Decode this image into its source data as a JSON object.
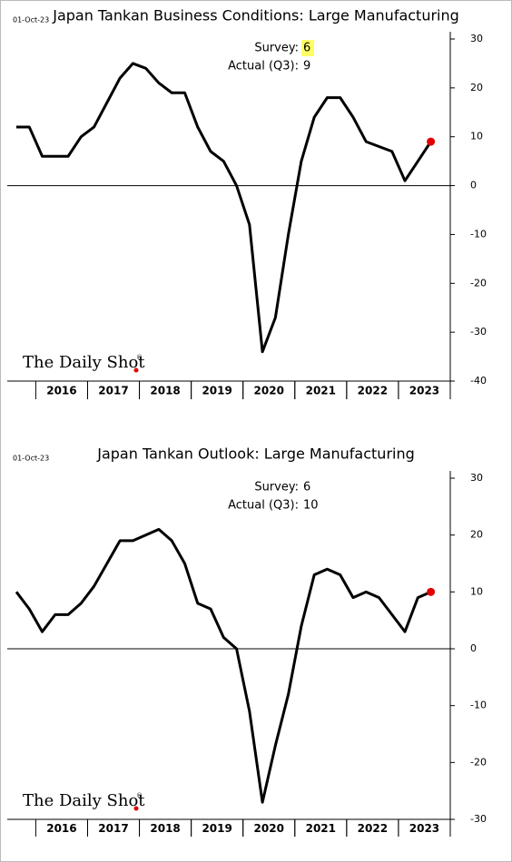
{
  "watermark": "The Daily Shot",
  "watermark_mark": "®",
  "chart_data": [
    {
      "type": "line",
      "title": "Japan Tankan Business Conditions: Large Manufacturing",
      "date": "01-Oct-23",
      "annotations": [
        {
          "label": "Survey:",
          "value": "6",
          "highlight": "#ffff66"
        },
        {
          "label": "Actual (Q3):",
          "value": "9"
        }
      ],
      "x": [
        2015.625,
        2015.875,
        2016.125,
        2016.375,
        2016.625,
        2016.875,
        2017.125,
        2017.375,
        2017.625,
        2017.875,
        2018.125,
        2018.375,
        2018.625,
        2018.875,
        2019.125,
        2019.375,
        2019.625,
        2019.875,
        2020.125,
        2020.375,
        2020.625,
        2020.875,
        2021.125,
        2021.375,
        2021.625,
        2021.875,
        2022.125,
        2022.375,
        2022.625,
        2022.875,
        2023.125,
        2023.375,
        2023.625
      ],
      "series": [
        {
          "color": "#000000",
          "last_point_color": "#e00000",
          "values": [
            12,
            12,
            6,
            6,
            6,
            10,
            12,
            17,
            22,
            25,
            24,
            21,
            19,
            19,
            12,
            7,
            5,
            0,
            -8,
            -34,
            -27,
            -10,
            5,
            14,
            18,
            18,
            14,
            9,
            8,
            7,
            1,
            5,
            9
          ]
        }
      ],
      "xlim": [
        2015.45,
        2024.0
      ],
      "xticks": [
        {
          "value": 2016.5,
          "label": "2016"
        },
        {
          "value": 2017.5,
          "label": "2017"
        },
        {
          "value": 2018.5,
          "label": "2018"
        },
        {
          "value": 2019.5,
          "label": "2019"
        },
        {
          "value": 2020.5,
          "label": "2020"
        },
        {
          "value": 2021.5,
          "label": "2021"
        },
        {
          "value": 2022.5,
          "label": "2022"
        },
        {
          "value": 2023.5,
          "label": "2023"
        }
      ],
      "ylim": [
        -40,
        30
      ],
      "yticks": [
        -40,
        -30,
        -20,
        -10,
        0,
        10,
        20,
        30
      ]
    },
    {
      "type": "line",
      "title": "Japan Tankan Outlook: Large Manufacturing",
      "date": "01-Oct-23",
      "annotations": [
        {
          "label": "Survey:",
          "value": "6"
        },
        {
          "label": "Actual (Q3):",
          "value": "10"
        }
      ],
      "x": [
        2015.625,
        2015.875,
        2016.125,
        2016.375,
        2016.625,
        2016.875,
        2017.125,
        2017.375,
        2017.625,
        2017.875,
        2018.125,
        2018.375,
        2018.625,
        2018.875,
        2019.125,
        2019.375,
        2019.625,
        2019.875,
        2020.125,
        2020.375,
        2020.625,
        2020.875,
        2021.125,
        2021.375,
        2021.625,
        2021.875,
        2022.125,
        2022.375,
        2022.625,
        2022.875,
        2023.125,
        2023.375,
        2023.625
      ],
      "series": [
        {
          "color": "#000000",
          "last_point_color": "#e00000",
          "values": [
            10,
            7,
            3,
            6,
            6,
            8,
            11,
            15,
            19,
            19,
            20,
            21,
            19,
            15,
            8,
            7,
            2,
            0,
            -11,
            -27,
            -17,
            -8,
            4,
            13,
            14,
            13,
            9,
            10,
            9,
            6,
            3,
            9,
            10
          ]
        }
      ],
      "xlim": [
        2015.45,
        2024.0
      ],
      "xticks": [
        {
          "value": 2016.5,
          "label": "2016"
        },
        {
          "value": 2017.5,
          "label": "2017"
        },
        {
          "value": 2018.5,
          "label": "2018"
        },
        {
          "value": 2019.5,
          "label": "2019"
        },
        {
          "value": 2020.5,
          "label": "2020"
        },
        {
          "value": 2021.5,
          "label": "2021"
        },
        {
          "value": 2022.5,
          "label": "2022"
        },
        {
          "value": 2023.5,
          "label": "2023"
        }
      ],
      "ylim": [
        -30,
        30
      ],
      "yticks": [
        -30,
        -20,
        -10,
        0,
        10,
        20,
        30
      ]
    }
  ]
}
